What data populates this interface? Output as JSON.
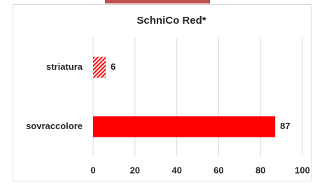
{
  "chart_data": {
    "type": "bar",
    "orientation": "horizontal",
    "title": "SchniCo Red*",
    "categories": [
      "striatura",
      "sovraccolore"
    ],
    "values": [
      6,
      87
    ],
    "colors": [
      "#ff0000",
      "#ff0000"
    ],
    "hatch": [
      true,
      false
    ],
    "xlim": [
      0,
      100
    ],
    "xticks": [
      0,
      20,
      40,
      60,
      80,
      100
    ],
    "grid": true,
    "data_labels": true
  }
}
